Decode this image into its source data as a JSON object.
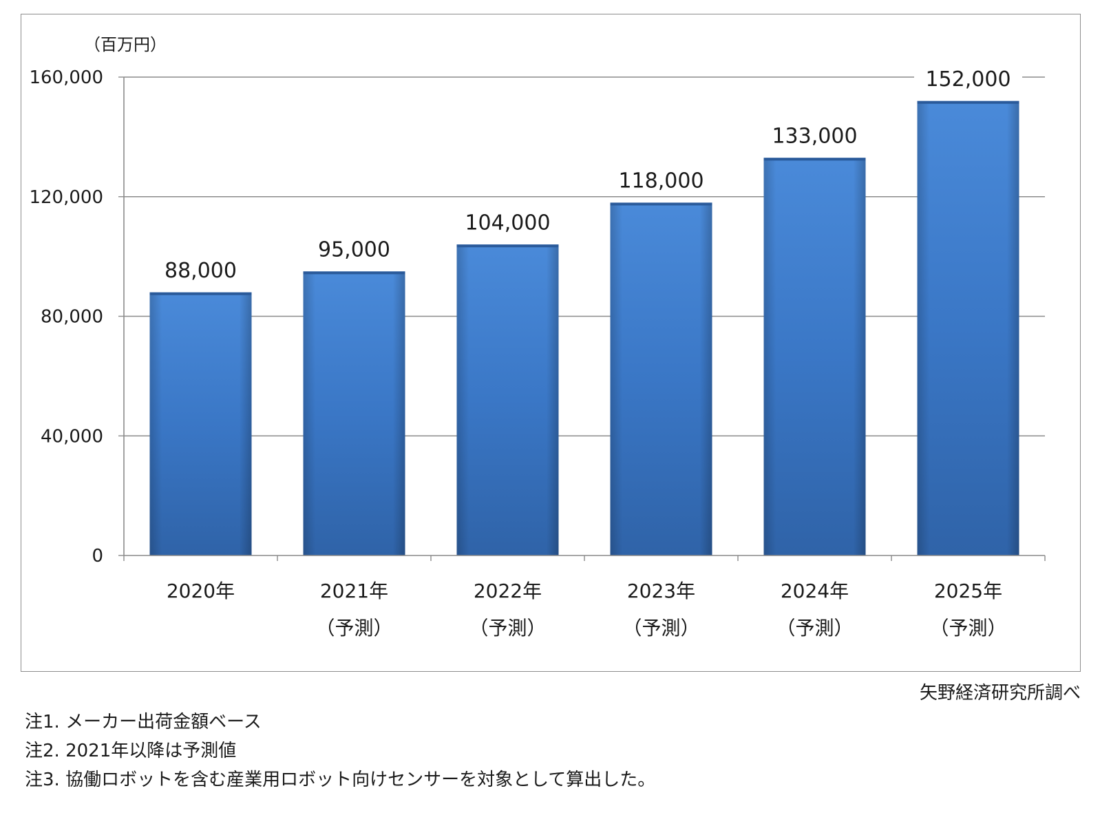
{
  "chart_data": {
    "type": "bar",
    "unit_label": "（百万円）",
    "categories": [
      [
        "2020年"
      ],
      [
        "2021年",
        "（予測）"
      ],
      [
        "2022年",
        "（予測）"
      ],
      [
        "2023年",
        "（予測）"
      ],
      [
        "2024年",
        "（予測）"
      ],
      [
        "2025年",
        "（予測）"
      ]
    ],
    "values": [
      88000,
      95000,
      104000,
      118000,
      133000,
      152000
    ],
    "value_labels": [
      "88,000",
      "95,000",
      "104,000",
      "118,000",
      "133,000",
      "152,000"
    ],
    "yticks": [
      0,
      40000,
      80000,
      120000,
      160000
    ],
    "ytick_labels": [
      "0",
      "40,000",
      "80,000",
      "120,000",
      "160,000"
    ],
    "ylim": [
      0,
      160000
    ],
    "grid": true,
    "bar_color": "#3a78c9",
    "legend": false
  },
  "source": "矢野経済研究所調べ",
  "notes": [
    "注1.  メーカー出荷金額ベース",
    "注2.  2021年以降は予測値",
    "注3.  協働ロボットを含む産業用ロボット向けセンサーを対象として算出した。"
  ]
}
